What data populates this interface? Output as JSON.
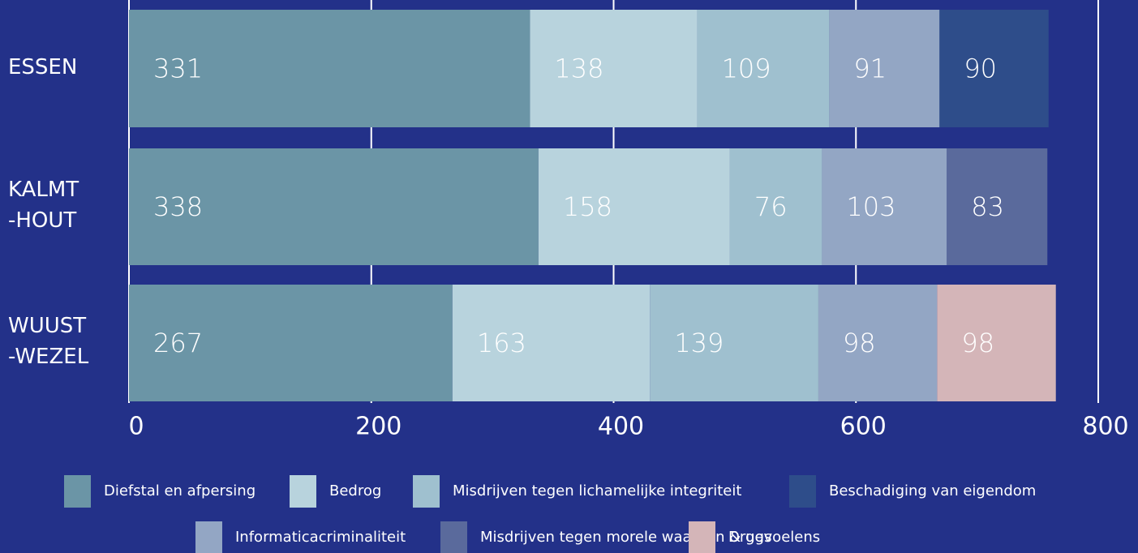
{
  "chart_data": {
    "type": "stacked-bar-horizontal",
    "categories": [
      "ESSEN",
      "KALMT\n-HOUT",
      "WUUST\n-WEZEL"
    ],
    "series": [
      {
        "name": "Diefstal en afpersing",
        "color": "#6b95a6",
        "values": [
          331,
          338,
          267
        ]
      },
      {
        "name": "Bedrog",
        "color": "#b8d3dd",
        "values": [
          138,
          158,
          163
        ]
      },
      {
        "name": "Misdrijven tegen lichamelijke integriteit",
        "color": "#9fc0cf",
        "values": [
          109,
          76,
          139
        ]
      },
      {
        "name": "Beschadiging van eigendom",
        "color": "#2e4d8a",
        "values": [
          90,
          null,
          null
        ]
      },
      {
        "name": "Informaticacriminaliteit",
        "color": "#93a6c4",
        "values": [
          91,
          103,
          98
        ]
      },
      {
        "name": "Misdrijven tegen morele waarden & gevoelens",
        "color": "#5a6a9c",
        "values": [
          null,
          83,
          null
        ]
      },
      {
        "name": "Drugs",
        "color": "#d4b5b8",
        "values": [
          null,
          null,
          98
        ]
      }
    ],
    "xlim": [
      0,
      800
    ],
    "xticks": [
      0,
      200,
      400,
      600,
      800
    ],
    "grid": true
  }
}
